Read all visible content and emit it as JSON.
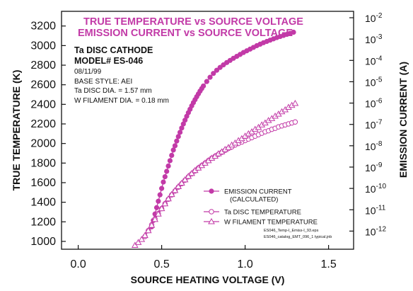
{
  "colors": {
    "series": "#c23aa7",
    "axis": "#111111"
  },
  "chart_data": {
    "type": "scatter",
    "title": "TRUE TEMPERATURE vs SOURCE VOLTAGE",
    "subtitle": "EMISSION CURRENT vs SOURCE VOLTAGE",
    "xlabel": "SOURCE HEATING VOLTAGE (V)",
    "ylabel": "TRUE TEMPERATURE (K)",
    "y2label": "EMISSION CURRENT (A)",
    "xlim": [
      -0.1,
      1.65
    ],
    "ylim": [
      920,
      3350
    ],
    "x_ticks": [
      "0.0",
      "0.5",
      "1.0",
      "1.5"
    ],
    "x_tick_values": [
      0,
      0.5,
      1.0,
      1.5
    ],
    "y_ticks": [
      "1000",
      "1200",
      "1400",
      "1600",
      "1800",
      "2000",
      "2200",
      "2400",
      "2600",
      "2800",
      "3000",
      "3200"
    ],
    "y_tick_values": [
      1000,
      1200,
      1400,
      1600,
      1800,
      2000,
      2200,
      2400,
      2600,
      2800,
      3000,
      3200
    ],
    "y2_ticks": [
      {
        "base": "10",
        "exp": "-2",
        "log": -2
      },
      {
        "base": "10",
        "exp": "-3",
        "log": -3
      },
      {
        "base": "10",
        "exp": "-4",
        "log": -4
      },
      {
        "base": "10",
        "exp": "-5",
        "log": -5
      },
      {
        "base": "10",
        "exp": "-6",
        "log": -6
      },
      {
        "base": "10",
        "exp": "-7",
        "log": -7
      },
      {
        "base": "10",
        "exp": "-8",
        "log": -8
      },
      {
        "base": "10",
        "exp": "-9",
        "log": -9
      },
      {
        "base": "10",
        "exp": "-10",
        "log": -10
      },
      {
        "base": "10",
        "exp": "-11",
        "log": -11
      },
      {
        "base": "10",
        "exp": "-12",
        "log": -12
      }
    ],
    "y2_scale": "log",
    "y2lim_log": [
      -12.85,
      -1.7
    ],
    "legend_position": "lower-right",
    "annotations": {
      "cathode": "Ta DISC CATHODE",
      "model": "MODEL# ES-046",
      "date": "08/11/99",
      "base_style": "BASE STYLE:  AEI",
      "disc_dia": "Ta DISC DIA. = 1.57 mm",
      "filament_dia": "W FILAMENT DIA. = 0.18 mm",
      "file1": "ES046_Temp-I_Emiss-I_93.eps",
      "file2": "ES046_catalog_EMT_096_1 typical.jnb"
    },
    "series": [
      {
        "name": "EMISSION CURRENT (CALCULATED)",
        "legend_lines": [
          "EMISSION CURRENT",
          "(CALCULATED)"
        ],
        "marker": "filled-circle",
        "axis": "right-log",
        "x": [
          0.44,
          0.45,
          0.46,
          0.47,
          0.48,
          0.49,
          0.5,
          0.51,
          0.52,
          0.53,
          0.54,
          0.55,
          0.56,
          0.57,
          0.58,
          0.59,
          0.6,
          0.61,
          0.62,
          0.63,
          0.64,
          0.65,
          0.66,
          0.67,
          0.68,
          0.69,
          0.7,
          0.71,
          0.72,
          0.73,
          0.74,
          0.75,
          0.77,
          0.79,
          0.81,
          0.83,
          0.85,
          0.87,
          0.89,
          0.91,
          0.93,
          0.95,
          0.97,
          0.99,
          1.01,
          1.03,
          1.05,
          1.07,
          1.09,
          1.11,
          1.13,
          1.15,
          1.17,
          1.19,
          1.21,
          1.23,
          1.25,
          1.27,
          1.29
        ],
        "y": [
          -11.8,
          -11.5,
          -11.2,
          -10.9,
          -10.6,
          -10.3,
          -10.0,
          -9.7,
          -9.45,
          -9.2,
          -8.95,
          -8.7,
          -8.45,
          -8.2,
          -8.0,
          -7.78,
          -7.57,
          -7.37,
          -7.17,
          -6.98,
          -6.8,
          -6.62,
          -6.45,
          -6.29,
          -6.13,
          -5.98,
          -5.84,
          -5.7,
          -5.57,
          -5.44,
          -5.32,
          -5.2,
          -4.99,
          -4.79,
          -4.61,
          -4.46,
          -4.33,
          -4.21,
          -4.1,
          -4.0,
          -3.9,
          -3.81,
          -3.72,
          -3.63,
          -3.55,
          -3.47,
          -3.39,
          -3.31,
          -3.24,
          -3.17,
          -3.11,
          -3.05,
          -2.99,
          -2.93,
          -2.88,
          -2.83,
          -2.78,
          -2.73,
          -2.68
        ]
      },
      {
        "name": "Ta DISC TEMPERATURE",
        "legend_lines": [
          "Ta DISC TEMPERATURE"
        ],
        "marker": "open-circle",
        "axis": "left",
        "x": [
          0.4,
          0.42,
          0.44,
          0.46,
          0.48,
          0.5,
          0.52,
          0.54,
          0.56,
          0.58,
          0.6,
          0.62,
          0.64,
          0.66,
          0.68,
          0.7,
          0.72,
          0.74,
          0.76,
          0.78,
          0.8,
          0.82,
          0.84,
          0.86,
          0.88,
          0.9,
          0.92,
          0.94,
          0.96,
          0.98,
          1.0,
          1.02,
          1.04,
          1.06,
          1.08,
          1.1,
          1.12,
          1.14,
          1.16,
          1.18,
          1.2,
          1.22,
          1.24,
          1.26,
          1.28,
          1.3
        ],
        "y": [
          1050,
          1110,
          1170,
          1230,
          1285,
          1335,
          1385,
          1430,
          1475,
          1515,
          1555,
          1590,
          1625,
          1660,
          1690,
          1720,
          1750,
          1775,
          1800,
          1825,
          1850,
          1870,
          1890,
          1910,
          1930,
          1950,
          1965,
          1985,
          2000,
          2015,
          2030,
          2045,
          2060,
          2075,
          2090,
          2105,
          2120,
          2130,
          2145,
          2155,
          2170,
          2180,
          2190,
          2200,
          2210,
          2220
        ]
      },
      {
        "name": "W FILAMENT TEMPERATURE",
        "legend_lines": [
          "W FILAMENT TEMPERATURE"
        ],
        "marker": "open-triangle",
        "axis": "left",
        "x": [
          0.34,
          0.36,
          0.38,
          0.4,
          0.42,
          0.44,
          0.46,
          0.48,
          0.5,
          0.52,
          0.54,
          0.56,
          0.58,
          0.6,
          0.62,
          0.64,
          0.66,
          0.68,
          0.7,
          0.72,
          0.74,
          0.76,
          0.78,
          0.8,
          0.82,
          0.84,
          0.86,
          0.88,
          0.9,
          0.92,
          0.94,
          0.96,
          0.98,
          1.0,
          1.02,
          1.04,
          1.06,
          1.08,
          1.1,
          1.12,
          1.14,
          1.16,
          1.18,
          1.2,
          1.22,
          1.24,
          1.26,
          1.28,
          1.3
        ],
        "y": [
          960,
          990,
          1020,
          1060,
          1110,
          1165,
          1225,
          1280,
          1335,
          1385,
          1435,
          1480,
          1520,
          1560,
          1595,
          1630,
          1665,
          1695,
          1725,
          1750,
          1775,
          1800,
          1825,
          1850,
          1870,
          1895,
          1915,
          1940,
          1960,
          1985,
          2005,
          2030,
          2050,
          2075,
          2100,
          2120,
          2145,
          2165,
          2190,
          2210,
          2235,
          2255,
          2280,
          2300,
          2325,
          2345,
          2370,
          2390,
          2410
        ]
      }
    ]
  }
}
